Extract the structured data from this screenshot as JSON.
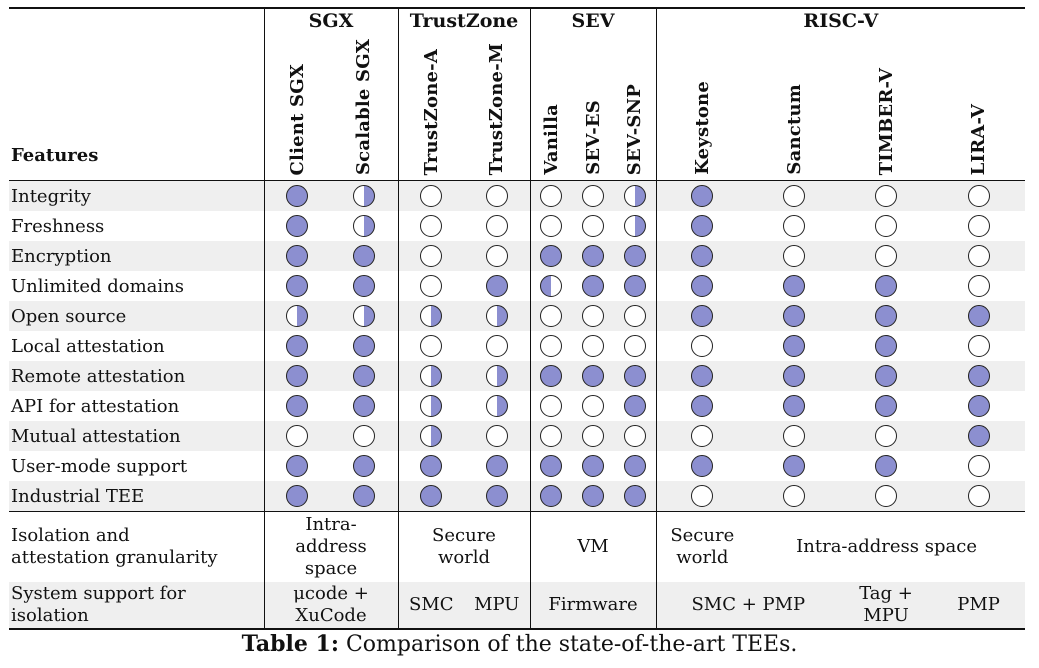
{
  "groups": {
    "sgx": "SGX",
    "trustzone": "TrustZone",
    "sev": "SEV",
    "riscv": "RISC-V"
  },
  "columns": [
    "Client SGX",
    "Scalable SGX",
    "TrustZone-A",
    "TrustZone-M",
    "Vanilla",
    "SEV-ES",
    "SEV-SNP",
    "Keystone",
    "Sanctum",
    "TIMBER-V",
    "LIRA-V"
  ],
  "features_label": "Features",
  "rows": [
    {
      "name": "Integrity",
      "vals": [
        "full",
        "half",
        "empty",
        "empty",
        "empty",
        "empty",
        "half",
        "full",
        "empty",
        "empty",
        "empty"
      ]
    },
    {
      "name": "Freshness",
      "vals": [
        "full",
        "half",
        "empty",
        "empty",
        "empty",
        "empty",
        "half",
        "full",
        "empty",
        "empty",
        "empty"
      ]
    },
    {
      "name": "Encryption",
      "vals": [
        "full",
        "full",
        "empty",
        "empty",
        "full",
        "full",
        "full",
        "full",
        "empty",
        "empty",
        "empty"
      ]
    },
    {
      "name": "Unlimited domains",
      "vals": [
        "full",
        "full",
        "empty",
        "full",
        "halfL",
        "full",
        "full",
        "full",
        "full",
        "full",
        "empty"
      ]
    },
    {
      "name": "Open source",
      "vals": [
        "half",
        "half",
        "half",
        "half",
        "empty",
        "empty",
        "empty",
        "full",
        "full",
        "full",
        "full"
      ]
    },
    {
      "name": "Local attestation",
      "vals": [
        "full",
        "full",
        "empty",
        "empty",
        "empty",
        "empty",
        "empty",
        "empty",
        "full",
        "full",
        "empty"
      ]
    },
    {
      "name": "Remote attestation",
      "vals": [
        "full",
        "full",
        "half",
        "half",
        "full",
        "full",
        "full",
        "full",
        "full",
        "full",
        "full"
      ]
    },
    {
      "name": "API for attestation",
      "vals": [
        "full",
        "full",
        "half",
        "half",
        "empty",
        "empty",
        "full",
        "full",
        "full",
        "full",
        "full"
      ]
    },
    {
      "name": "Mutual attestation",
      "vals": [
        "empty",
        "empty",
        "half",
        "empty",
        "empty",
        "empty",
        "empty",
        "empty",
        "empty",
        "empty",
        "full"
      ]
    },
    {
      "name": "User-mode support",
      "vals": [
        "full",
        "full",
        "full",
        "full",
        "full",
        "full",
        "full",
        "full",
        "full",
        "full",
        "empty"
      ]
    },
    {
      "name": "Industrial TEE",
      "vals": [
        "full",
        "full",
        "full",
        "full",
        "full",
        "full",
        "full",
        "empty",
        "empty",
        "empty",
        "empty"
      ]
    }
  ],
  "isolation": {
    "label_1": "Isolation and",
    "label_2": "attestation granularity",
    "sgx_1": "Intra-",
    "sgx_2": "address",
    "sgx_3": "space",
    "tz_1": "Secure",
    "tz_2": "world",
    "sev": "VM",
    "keystone_1": "Secure",
    "keystone_2": "world",
    "riscv_rest": "Intra-address space"
  },
  "system": {
    "label_1": "System support for",
    "label_2": "isolation",
    "sgx_1": "μcode +",
    "sgx_2": "XuCode",
    "tza": "SMC",
    "tzm": "MPU",
    "sev": "Firmware",
    "keystone_sanctum": "SMC + PMP",
    "timber_1": "Tag +",
    "timber_2": "MPU",
    "lira": "PMP"
  },
  "caption": {
    "label": "Table 1:",
    "text": " Comparison of the state-of-the-art TEEs."
  },
  "colors": {
    "fill": "#8c8fd0",
    "shade": "#efefef"
  }
}
